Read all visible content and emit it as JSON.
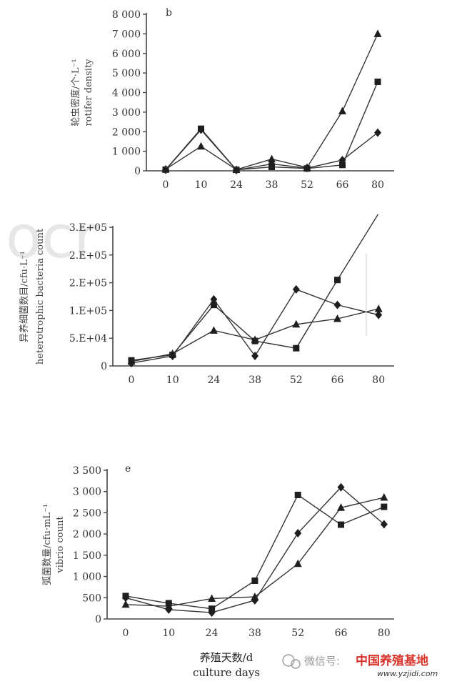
{
  "chart_data": [
    {
      "type": "line",
      "panel_tag": "b",
      "ylabel_cn": "轮虫密度/个·L⁻¹",
      "ylabel_en": "rotifer density",
      "categories": [
        "0",
        "10",
        "24",
        "38",
        "52",
        "66",
        "80"
      ],
      "yticks": [
        "0",
        "1 000",
        "2 000",
        "3 000",
        "4 000",
        "5 000",
        "6 000",
        "7 000",
        "8 000"
      ],
      "ylim": [
        0,
        8000
      ],
      "series": [
        {
          "marker": "square",
          "values": [
            60,
            2150,
            50,
            200,
            120,
            300,
            4550
          ]
        },
        {
          "marker": "triangle",
          "values": [
            80,
            1250,
            60,
            600,
            170,
            3050,
            7000
          ]
        },
        {
          "marker": "diamond",
          "values": [
            50,
            2100,
            40,
            350,
            140,
            550,
            1950
          ]
        }
      ]
    },
    {
      "type": "line",
      "panel_tag": "",
      "ylabel_cn": "异养细菌数目/cfu·L⁻¹",
      "ylabel_en": "heterotrophic bacteria count",
      "categories": [
        "0",
        "10",
        "24",
        "38",
        "52",
        "66",
        "80"
      ],
      "yticks": [
        "0",
        "5.E+04",
        "1.E+05",
        "2.E+05",
        "2.E+05",
        "3.E+05"
      ],
      "ylim": [
        0,
        250000
      ],
      "series": [
        {
          "marker": "square",
          "values": [
            10000,
            20000,
            110000,
            45000,
            32000,
            155000,
            275000
          ]
        },
        {
          "marker": "triangle",
          "values": [
            8000,
            22000,
            64000,
            47000,
            75000,
            85000,
            103000
          ]
        },
        {
          "marker": "diamond",
          "values": [
            5000,
            18000,
            120000,
            18000,
            138000,
            110000,
            92000
          ]
        }
      ]
    },
    {
      "type": "line",
      "panel_tag": "e",
      "ylabel_cn": "弧菌数量/cfu·mL⁻¹",
      "ylabel_en": "vibrio count",
      "categories": [
        "0",
        "10",
        "24",
        "38",
        "52",
        "66",
        "80"
      ],
      "yticks": [
        "0",
        "500",
        "1 000",
        "1 500",
        "2 000",
        "2 500",
        "3 000",
        "3 500"
      ],
      "ylim": [
        0,
        3500
      ],
      "series": [
        {
          "marker": "square",
          "values": [
            540,
            370,
            240,
            900,
            2920,
            2220,
            2640
          ]
        },
        {
          "marker": "triangle",
          "values": [
            340,
            300,
            480,
            520,
            1300,
            2620,
            2860
          ]
        },
        {
          "marker": "diamond",
          "values": [
            500,
            220,
            150,
            440,
            2020,
            3100,
            2230
          ]
        }
      ]
    }
  ],
  "xtitle_cn": "养殖天数/d",
  "xtitle_en": "culture days",
  "footer": {
    "watermark_text": "微信号:",
    "logo_text": "中国养殖基地",
    "url": "www.yzjidi.com"
  }
}
